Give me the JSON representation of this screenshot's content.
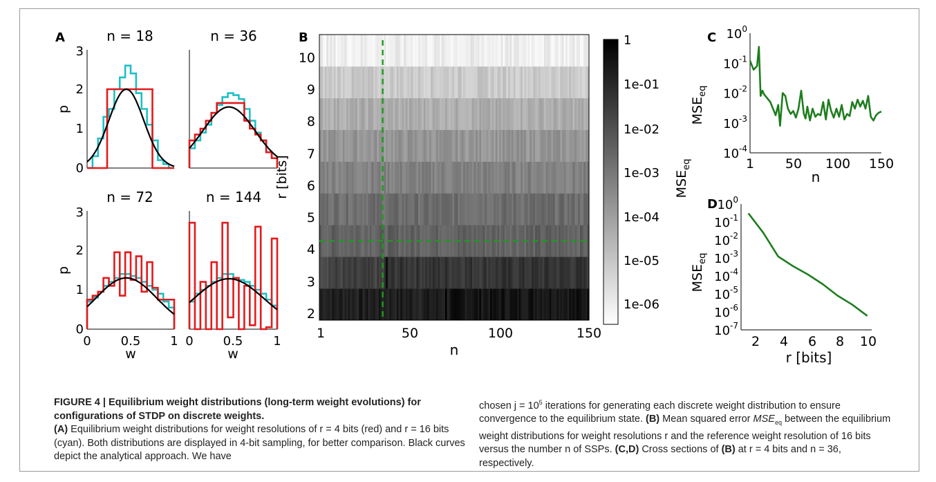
{
  "panels": {
    "A": {
      "letter": "A",
      "subplots": [
        {
          "title": "n = 18"
        },
        {
          "title": "n = 36"
        },
        {
          "title": "n = 72"
        },
        {
          "title": "n = 144"
        }
      ],
      "ylabel": "p",
      "xlabel": "w",
      "yticks": [
        "0",
        "1",
        "2",
        "3"
      ],
      "xticks": [
        "0",
        "0.5",
        "1"
      ]
    },
    "B": {
      "letter": "B",
      "ylabel": "r [bits]",
      "xlabel": "n",
      "yticks": [
        "2",
        "3",
        "4",
        "5",
        "6",
        "7",
        "8",
        "9",
        "10"
      ],
      "xticks": [
        "1",
        "50",
        "100",
        "150"
      ],
      "colorbar_ticks": [
        "1",
        "1e-01",
        "1e-02",
        "1e-03",
        "1e-04",
        "1e-05",
        "1e-06"
      ],
      "colorbar_label": "MSE",
      "colorbar_label_sub": "eq"
    },
    "C": {
      "letter": "C",
      "ylabel": "MSE",
      "ylabel_sub": "eq",
      "xlabel": "n",
      "xticks": [
        "1",
        "50",
        "100",
        "150"
      ]
    },
    "D": {
      "letter": "D",
      "ylabel": "MSE",
      "ylabel_sub": "eq",
      "xlabel": "r [bits]",
      "xticks": [
        "2",
        "4",
        "6",
        "8",
        "10"
      ]
    }
  },
  "colors": {
    "red": "#e41a1c",
    "cyan": "#1fbfc6",
    "black": "#000000",
    "green": "#1e7d1e",
    "guide": "#1e9a1e"
  },
  "chart_data": [
    {
      "panel": "A",
      "type": "line",
      "title": "n = 18",
      "xlim": [
        0,
        1
      ],
      "ylim": [
        0,
        3
      ],
      "bin_edges_16": [
        0,
        0.0625,
        0.125,
        0.1875,
        0.25,
        0.3125,
        0.375,
        0.4375,
        0.5,
        0.5625,
        0.625,
        0.6875,
        0.75,
        0.8125,
        0.875,
        0.9375,
        1
      ],
      "bin_edges_red": [
        0.0,
        0.23,
        0.5,
        0.75,
        1.0
      ],
      "series": [
        {
          "name": "r = 4 bits (red)",
          "values": [
            0.0,
            2.0,
            2.0,
            0.0
          ]
        },
        {
          "name": "r = 16 bits (cyan)",
          "values": [
            0.0,
            0.3,
            0.75,
            1.3,
            1.5,
            2.0,
            2.3,
            2.6,
            2.4,
            1.9,
            1.5,
            1.1,
            0.7,
            0.2,
            0.1,
            0.0
          ]
        },
        {
          "name": "analytical",
          "mu": 0.45,
          "sigma": 0.2,
          "peak": 2.0
        }
      ]
    },
    {
      "panel": "A",
      "type": "line",
      "title": "n = 36",
      "xlim": [
        0,
        1
      ],
      "ylim": [
        0,
        3
      ],
      "bin_edges_red": [
        0.0,
        0.0625,
        0.125,
        0.1875,
        0.25,
        0.3125,
        0.625,
        0.6875,
        0.75,
        0.8125,
        0.875,
        0.9375,
        1.0
      ],
      "series": [
        {
          "name": "r = 4 bits (red)",
          "values": [
            0.7,
            0.85,
            1.0,
            1.2,
            1.4,
            1.65,
            1.2,
            1.0,
            0.85,
            0.7,
            0.4,
            0.25
          ]
        },
        {
          "name": "r = 16 bits (cyan)",
          "values": [
            0.5,
            0.7,
            0.9,
            1.1,
            1.4,
            1.6,
            1.8,
            1.9,
            1.85,
            1.75,
            1.5,
            1.2,
            0.9,
            0.7,
            0.4,
            0.25
          ]
        },
        {
          "name": "analytical",
          "mu": 0.45,
          "sigma": 0.3,
          "peak": 1.55
        }
      ]
    },
    {
      "panel": "A",
      "type": "line",
      "title": "n = 72",
      "xlim": [
        0,
        1
      ],
      "ylim": [
        0,
        3
      ],
      "bin_edges_16": [
        0,
        0.0625,
        0.125,
        0.1875,
        0.25,
        0.3125,
        0.375,
        0.4375,
        0.5,
        0.5625,
        0.625,
        0.6875,
        0.75,
        0.8125,
        0.875,
        0.9375,
        1
      ],
      "series": [
        {
          "name": "r = 4 bits (red)",
          "values": [
            0.75,
            0.85,
            0.95,
            1.3,
            1.1,
            1.95,
            0.85,
            1.95,
            1.25,
            1.85,
            0.95,
            1.7,
            1.05,
            0.75,
            0.75,
            0.75
          ]
        },
        {
          "name": "r = 16 bits (cyan)",
          "values": [
            0.7,
            0.8,
            0.95,
            1.1,
            1.2,
            1.3,
            1.4,
            1.4,
            1.35,
            1.3,
            1.2,
            1.1,
            1.0,
            0.9,
            0.7,
            0.55
          ]
        },
        {
          "name": "analytical",
          "mu": 0.45,
          "sigma": 0.35,
          "peak": 1.3
        }
      ]
    },
    {
      "panel": "A",
      "type": "line",
      "title": "n = 144",
      "xlim": [
        0,
        1
      ],
      "ylim": [
        0,
        3
      ],
      "bin_edges_16": [
        0,
        0.0625,
        0.125,
        0.1875,
        0.25,
        0.3125,
        0.375,
        0.4375,
        0.5,
        0.5625,
        0.625,
        0.6875,
        0.75,
        0.8125,
        0.875,
        0.9375,
        1
      ],
      "series": [
        {
          "name": "r = 4 bits (red)",
          "values": [
            2.7,
            0.0,
            1.2,
            0.0,
            1.7,
            0.0,
            2.7,
            0.3,
            1.3,
            0.0,
            1.1,
            0.1,
            2.6,
            0.0,
            0.05,
            2.3
          ]
        },
        {
          "name": "r = 16 bits (cyan)",
          "values": [
            0.7,
            0.9,
            1.0,
            1.1,
            1.2,
            1.3,
            1.4,
            1.4,
            1.3,
            1.25,
            1.2,
            1.1,
            1.0,
            0.9,
            0.75,
            0.6
          ]
        },
        {
          "name": "analytical",
          "mu": 0.45,
          "sigma": 0.4,
          "peak": 1.28
        }
      ]
    },
    {
      "panel": "B",
      "type": "heatmap",
      "xlabel": "n",
      "ylabel": "r [bits]",
      "xlim": [
        1,
        150
      ],
      "rows_r": [
        2,
        3,
        4,
        5,
        6,
        7,
        8,
        9,
        10
      ],
      "colorscale": "log10 MSE_eq, black = 1, white = 1e-06",
      "row_base_log10": [
        -0.5,
        -1.3,
        -2.4,
        -2.7,
        -3.2,
        -3.7,
        -4.3,
        -5.0,
        -5.9
      ],
      "dashed_guides": {
        "n": 36,
        "r": 4
      }
    },
    {
      "panel": "C",
      "type": "line",
      "yscale": "log",
      "xlabel": "n",
      "xlim": [
        1,
        150
      ],
      "ylim": [
        0.0001,
        1
      ],
      "x": [
        1,
        5,
        9,
        11,
        13,
        15,
        17,
        20,
        24,
        27,
        30,
        33,
        35,
        38,
        41,
        44,
        47,
        50,
        53,
        56,
        59,
        62,
        64,
        66,
        69,
        72,
        75,
        78,
        81,
        84,
        87,
        90,
        93,
        96,
        99,
        102,
        105,
        108,
        111,
        114,
        117,
        120,
        123,
        126,
        129,
        132,
        135,
        138,
        141,
        144,
        147,
        150
      ],
      "y": [
        0.12,
        0.06,
        0.08,
        0.35,
        0.008,
        0.012,
        0.009,
        0.007,
        0.005,
        0.003,
        0.0018,
        0.004,
        0.0008,
        0.01,
        0.008,
        0.003,
        0.002,
        0.0025,
        0.0015,
        0.003,
        0.012,
        0.002,
        0.0014,
        0.0035,
        0.0012,
        0.003,
        0.0016,
        0.002,
        0.0018,
        0.005,
        0.0013,
        0.006,
        0.0025,
        0.0015,
        0.003,
        0.0016,
        0.004,
        0.0013,
        0.002,
        0.0017,
        0.005,
        0.003,
        0.006,
        0.0035,
        0.0055,
        0.003,
        0.008,
        0.0016,
        0.0012,
        0.0018,
        0.0022,
        0.0024
      ]
    },
    {
      "panel": "D",
      "type": "line",
      "yscale": "log",
      "xlabel": "r [bits]",
      "xlim": [
        1.5,
        10.3
      ],
      "ylim": [
        1e-07,
        1
      ],
      "x": [
        2,
        3,
        4,
        5,
        6,
        7,
        8,
        9,
        10
      ],
      "y": [
        0.3,
        0.025,
        0.0012,
        0.00035,
        0.00012,
        3.5e-05,
        8e-06,
        2.5e-06,
        6e-07
      ]
    }
  ],
  "caption": {
    "title": "FIGURE 4 | Equilibrium weight distributions (long-term weight evolutions) for configurations of STDP on discrete weights.",
    "left_A_label": "(A)",
    "left_body": "Equilibrium weight distributions for weight resolutions of r = 4 bits (red) and r = 16 bits (cyan). Both distributions are displayed in 4-bit sampling, for better comparison. Black curves depict the analytical approach. We have",
    "right_start": "chosen j = 10",
    "right_exp": "5",
    "right_mid": " iterations for generating each discrete weight distribution to ensure convergence to the equilibrium state. ",
    "right_B_label": "(B)",
    "right_b1": " Mean squared error ",
    "right_mse": "MSE",
    "right_mse_sub": "eq",
    "right_b2": " between the equilibrium weight distributions for weight resolutions r and the reference weight resolution of 16 bits versus the number n of SSPs. ",
    "right_CD_label": "(C,D)",
    "right_b3": " Cross sections of ",
    "right_B_ref": "(B)",
    "right_b4": " at r = 4 bits and n = 36, respectively."
  }
}
